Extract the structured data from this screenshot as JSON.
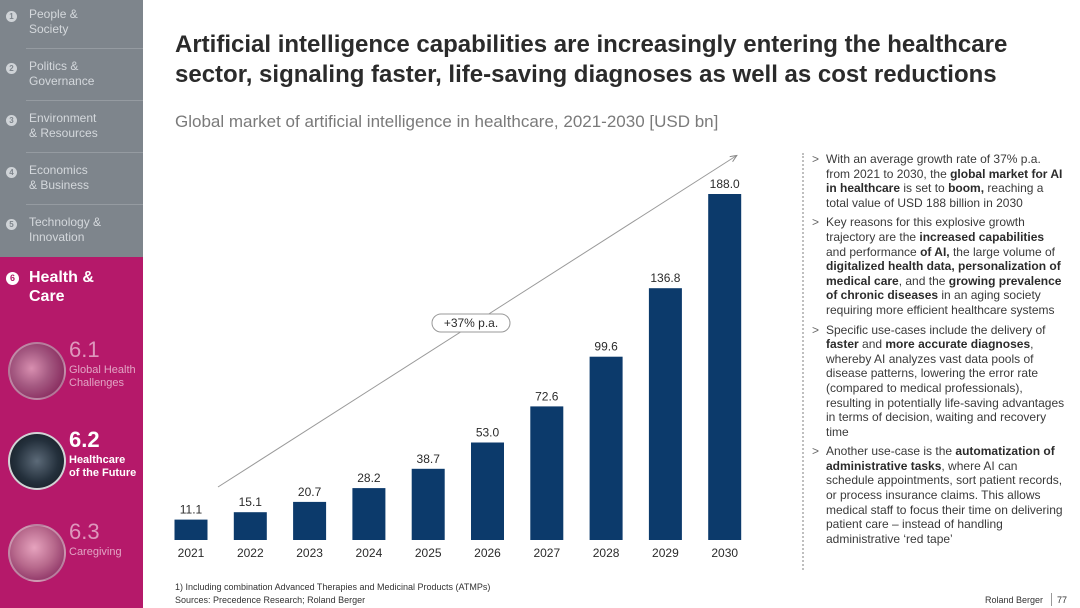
{
  "sidebar": {
    "items": [
      {
        "num": "1",
        "label": "People &\nSociety"
      },
      {
        "num": "2",
        "label": "Politics &\nGovernance"
      },
      {
        "num": "3",
        "label": "Environment\n& Resources"
      },
      {
        "num": "4",
        "label": "Economics\n& Business"
      },
      {
        "num": "5",
        "label": "Technology &\nInnovation"
      }
    ],
    "active": {
      "num": "6",
      "label": "Health &\nCare"
    },
    "subs": [
      {
        "num": "6.1",
        "label": "Global Health\nChallenges"
      },
      {
        "num": "6.2",
        "label": "Healthcare\nof the Future"
      },
      {
        "num": "6.3",
        "label": "Caregiving"
      }
    ],
    "colors": {
      "grey": "#7e858c",
      "magenta": "#b5196a"
    }
  },
  "title": "Artificial intelligence capabilities are increasingly entering the healthcare sector, signaling faster, life-saving diagnoses as well as cost reductions",
  "subtitle": "Global market of artificial intelligence in healthcare, 2021-2030 [USD bn]",
  "chart_data": {
    "type": "bar",
    "title": "Global market of artificial intelligence in healthcare, 2021-2030 [USD bn]",
    "categories": [
      "2021",
      "2022",
      "2023",
      "2024",
      "2025",
      "2026",
      "2027",
      "2028",
      "2029",
      "2030"
    ],
    "values": [
      11.1,
      15.1,
      20.7,
      28.2,
      38.7,
      53.0,
      72.6,
      99.6,
      136.8,
      188.0
    ],
    "value_labels": [
      "11.1",
      "15.1",
      "20.7",
      "28.2",
      "38.7",
      "53.0",
      "72.6",
      "99.6",
      "136.8",
      "188.0"
    ],
    "annotation": "+37% p.a.",
    "xlabel": "",
    "ylabel": "USD bn",
    "ylim": [
      0,
      188
    ],
    "bar_color": "#0c3a6b",
    "grid": false
  },
  "bullets": [
    [
      {
        "t": "With an average growth rate of 37% p.a. from 2021 to 2030, the "
      },
      {
        "t": "global market for AI in healthcare",
        "b": true
      },
      {
        "t": " is set to "
      },
      {
        "t": "boom,",
        "b": true
      },
      {
        "t": " reaching a total value of USD 188 billion in 2030"
      }
    ],
    [
      {
        "t": "Key reasons for this explosive growth trajectory are the "
      },
      {
        "t": "increased capabilities",
        "b": true
      },
      {
        "t": " and performance "
      },
      {
        "t": "of AI,",
        "b": true
      },
      {
        "t": " the large volume of "
      },
      {
        "t": "digitalized health data,",
        "b": true
      },
      {
        "t": " "
      },
      {
        "t": "personalization of medical care",
        "b": true
      },
      {
        "t": ", and the "
      },
      {
        "t": "growing prevalence of chronic diseases",
        "b": true
      },
      {
        "t": " in an aging society requiring more efficient healthcare systems"
      }
    ],
    [
      {
        "t": "Specific use-cases include the delivery of "
      },
      {
        "t": "faster",
        "b": true
      },
      {
        "t": " and "
      },
      {
        "t": "more accurate diagnoses",
        "b": true
      },
      {
        "t": ", whereby AI analyzes vast data pools of disease patterns, lowering the error rate (compared to medical professionals), resulting in potentially life-saving advantages in terms of decision, waiting and recovery time"
      }
    ],
    [
      {
        "t": "Another use-case is the "
      },
      {
        "t": "automatization of administrative tasks",
        "b": true
      },
      {
        "t": ", where AI can schedule appointments, sort patient records, or process insurance claims. This allows medical staff to focus their time on delivering patient care – instead of handling administrative ‘red tape’"
      }
    ]
  ],
  "bullet_marker": ">",
  "footnote": "1) Including combination Advanced Therapies and Medicinal Products (ATMPs)",
  "sources": "Sources: Precedence Research; Roland Berger",
  "brand": "Roland Berger",
  "page_number": "77"
}
